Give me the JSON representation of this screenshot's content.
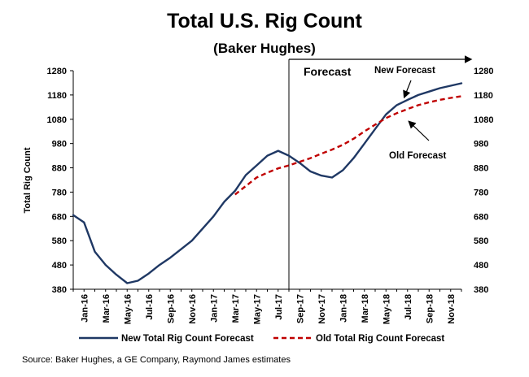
{
  "chart_data": {
    "type": "line",
    "title": "Total U.S. Rig Count",
    "subtitle": "(Baker Hughes)",
    "ylabel": "Total Rig Count",
    "ylim": [
      380,
      1280
    ],
    "yticks": [
      380,
      480,
      580,
      680,
      780,
      880,
      980,
      1080,
      1180,
      1280
    ],
    "ytick_labels": [
      "380",
      "480",
      "580",
      "680",
      "780",
      "880",
      "980",
      "1080",
      "1180",
      "1280"
    ],
    "x": [
      "Dec-15",
      "Jan-16",
      "Feb-16",
      "Mar-16",
      "Apr-16",
      "May-16",
      "Jun-16",
      "Jul-16",
      "Aug-16",
      "Sep-16",
      "Oct-16",
      "Nov-16",
      "Dec-16",
      "Jan-17",
      "Feb-17",
      "Mar-17",
      "Apr-17",
      "May-17",
      "Jun-17",
      "Jul-17",
      "Aug-17",
      "Sep-17",
      "Oct-17",
      "Nov-17",
      "Dec-17",
      "Jan-18",
      "Feb-18",
      "Mar-18",
      "Apr-18",
      "May-18",
      "Jun-18",
      "Jul-18",
      "Aug-18",
      "Sep-18",
      "Oct-18",
      "Nov-18",
      "Dec-18"
    ],
    "xtick_labels": [
      "Jan-16",
      "Mar-16",
      "May-16",
      "Jul-16",
      "Sep-16",
      "Nov-16",
      "Jan-17",
      "Mar-17",
      "May-17",
      "Jul-17",
      "Sep-17",
      "Nov-17",
      "Jan-18",
      "Mar-18",
      "May-18",
      "Jul-18",
      "Sep-18",
      "Nov-18"
    ],
    "series": [
      {
        "name": "New Total Rig Count Forecast",
        "color": "#1f3864",
        "style": "solid",
        "x": [
          "Dec-15",
          "Jan-16",
          "Feb-16",
          "Mar-16",
          "Apr-16",
          "May-16",
          "Jun-16",
          "Jul-16",
          "Aug-16",
          "Sep-16",
          "Oct-16",
          "Nov-16",
          "Dec-16",
          "Jan-17",
          "Feb-17",
          "Mar-17",
          "Apr-17",
          "May-17",
          "Jun-17",
          "Jul-17",
          "Aug-17",
          "Sep-17",
          "Oct-17",
          "Nov-17",
          "Dec-17",
          "Jan-18",
          "Feb-18",
          "Mar-18",
          "Apr-18",
          "May-18",
          "Jun-18",
          "Jul-18",
          "Aug-18",
          "Sep-18",
          "Oct-18",
          "Nov-18",
          "Dec-18"
        ],
        "values": [
          685,
          655,
          535,
          480,
          440,
          405,
          415,
          445,
          480,
          510,
          545,
          580,
          630,
          680,
          740,
          785,
          850,
          890,
          930,
          950,
          930,
          900,
          865,
          848,
          840,
          870,
          920,
          980,
          1040,
          1100,
          1138,
          1160,
          1180,
          1194,
          1208,
          1218,
          1228
        ]
      },
      {
        "name": "Old Total Rig Count Forecast",
        "color": "#c00000",
        "style": "dashed",
        "x": [
          "Mar-17",
          "Apr-17",
          "May-17",
          "Jun-17",
          "Jul-17",
          "Aug-17",
          "Sep-17",
          "Oct-17",
          "Nov-17",
          "Dec-17",
          "Jan-18",
          "Feb-18",
          "Mar-18",
          "Apr-18",
          "May-18",
          "Jun-18",
          "Jul-18",
          "Aug-18",
          "Sep-18",
          "Oct-18",
          "Nov-18",
          "Dec-18"
        ],
        "values": [
          770,
          805,
          840,
          860,
          878,
          890,
          905,
          920,
          938,
          955,
          975,
          1000,
          1030,
          1058,
          1085,
          1105,
          1122,
          1138,
          1150,
          1160,
          1168,
          1175
        ]
      }
    ],
    "forecast_label": "Forecast",
    "forecast_start": "Aug-17",
    "annotations": [
      {
        "text": "New Forecast"
      },
      {
        "text": "Old Forecast"
      }
    ],
    "grid": false,
    "legend_position": "bottom"
  },
  "footer": {
    "source": "Source: Baker Hughes, a GE Company, Raymond James estimates"
  }
}
